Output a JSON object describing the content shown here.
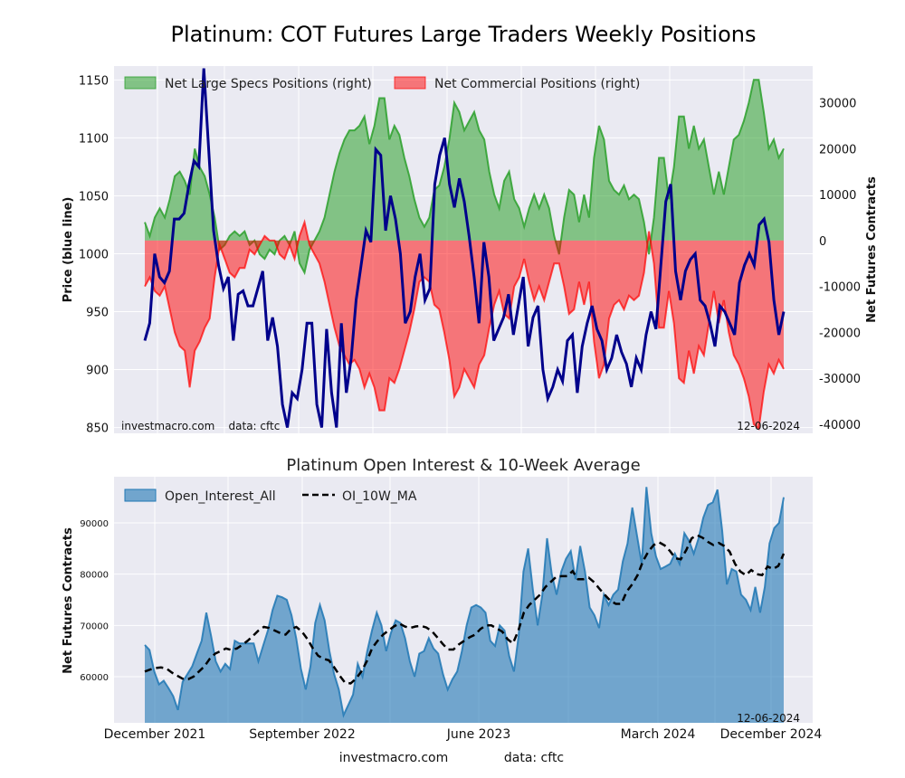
{
  "chart_data": [
    {
      "type": "area",
      "title": "Platinum: COT Futures Large Traders Weekly Positions",
      "ylabel": "Price (blue line)",
      "ylabel_right": "Net Futures Contracts",
      "ylim": [
        845,
        1162
      ],
      "ylim_right": [
        -42000,
        38000
      ],
      "yticks": [
        850,
        900,
        950,
        1000,
        1050,
        1100,
        1150
      ],
      "yticks_right": [
        -40000,
        -30000,
        -20000,
        -10000,
        0,
        10000,
        20000,
        30000
      ],
      "source_note": "investmacro.com    data: cftc",
      "date_note": "12-06-2024",
      "legend_position": "top",
      "grid": true,
      "series": [
        {
          "name": "Net Large Specs Positions (right)",
          "color": "#2ca02c",
          "values": [
            4000,
            1000,
            5000,
            7000,
            5000,
            9000,
            14000,
            15000,
            13000,
            10000,
            20000,
            16000,
            14000,
            10000,
            5000,
            -2000,
            -1000,
            1000,
            2000,
            1000,
            2000,
            -1000,
            0,
            -3000,
            -4000,
            -2000,
            -3000,
            0,
            1000,
            -1000,
            2000,
            -5000,
            -7000,
            -2000,
            0,
            2000,
            5000,
            10000,
            15000,
            19000,
            22000,
            24000,
            24000,
            25000,
            27000,
            21000,
            25000,
            31000,
            31000,
            22000,
            25000,
            23000,
            18000,
            14000,
            9000,
            5000,
            3000,
            5000,
            11000,
            12000,
            16000,
            22000,
            30000,
            28000,
            24000,
            26000,
            28000,
            24000,
            22000,
            15000,
            10000,
            7000,
            13000,
            15000,
            9000,
            7000,
            3000,
            7000,
            10000,
            7000,
            10000,
            7000,
            1000,
            -3000,
            5000,
            11000,
            10000,
            4000,
            10000,
            5000,
            18000,
            25000,
            22000,
            13000,
            11000,
            10000,
            12000,
            9000,
            10000,
            9000,
            4000,
            -3000,
            5000,
            18000,
            18000,
            9000,
            16000,
            27000,
            27000,
            20000,
            25000,
            20000,
            22000,
            16000,
            10000,
            15000,
            10000,
            16000,
            22000,
            23000,
            26000,
            30000,
            35000,
            35000,
            28000,
            20000,
            22000,
            18000,
            20000
          ]
        },
        {
          "name": "Net Commercial Positions (right)",
          "color": "#ff0000",
          "values": [
            -10000,
            -8000,
            -11000,
            -12000,
            -10000,
            -15000,
            -20000,
            -23000,
            -24000,
            -32000,
            -24000,
            -22000,
            -19000,
            -17000,
            -8000,
            -1000,
            -4000,
            -7000,
            -8000,
            -6000,
            -6000,
            -2000,
            -3000,
            -1000,
            1000,
            0,
            0,
            -3000,
            -4000,
            -1000,
            -4000,
            1000,
            4000,
            -1000,
            -3000,
            -5000,
            -9000,
            -14000,
            -19000,
            -23000,
            -25000,
            -27000,
            -26000,
            -28000,
            -32000,
            -29000,
            -32000,
            -37000,
            -37000,
            -30000,
            -31000,
            -28000,
            -24000,
            -20000,
            -15000,
            -9000,
            -8000,
            -9000,
            -14000,
            -15000,
            -20000,
            -26000,
            -34000,
            -32000,
            -28000,
            -30000,
            -32000,
            -27000,
            -25000,
            -19000,
            -14000,
            -11000,
            -16000,
            -17000,
            -10000,
            -8000,
            -4000,
            -9000,
            -13000,
            -10000,
            -13000,
            -9000,
            -5000,
            -5000,
            -10000,
            -16000,
            -15000,
            -9000,
            -14000,
            -9000,
            -22000,
            -30000,
            -27000,
            -17000,
            -14000,
            -13000,
            -15000,
            -12000,
            -13000,
            -12000,
            -7000,
            2000,
            -5000,
            -19000,
            -19000,
            -11000,
            -18000,
            -30000,
            -31000,
            -24000,
            -29000,
            -23000,
            -25000,
            -18000,
            -11000,
            -18000,
            -13000,
            -20000,
            -25000,
            -27000,
            -30000,
            -34000,
            -40000,
            -41000,
            -33000,
            -27000,
            -29000,
            -26000,
            -28000
          ]
        },
        {
          "name": "Price",
          "color": "#00008b",
          "values": [
            925,
            940,
            1000,
            980,
            975,
            985,
            1030,
            1030,
            1035,
            1060,
            1080,
            1075,
            1160,
            1090,
            1020,
            990,
            970,
            980,
            925,
            965,
            968,
            955,
            955,
            970,
            985,
            925,
            945,
            920,
            870,
            850,
            880,
            875,
            900,
            940,
            940,
            870,
            850,
            935,
            880,
            850,
            940,
            880,
            910,
            960,
            990,
            1020,
            1010,
            1090,
            1085,
            1020,
            1050,
            1030,
            1000,
            940,
            950,
            980,
            1000,
            960,
            970,
            1060,
            1085,
            1100,
            1060,
            1040,
            1065,
            1045,
            1015,
            980,
            940,
            1010,
            980,
            925,
            935,
            945,
            965,
            930,
            955,
            980,
            920,
            945,
            955,
            900,
            875,
            885,
            900,
            890,
            925,
            930,
            880,
            920,
            940,
            955,
            935,
            925,
            900,
            910,
            930,
            915,
            905,
            885,
            910,
            900,
            930,
            950,
            935,
            990,
            1045,
            1060,
            985,
            960,
            985,
            995,
            1000,
            960,
            955,
            940,
            920,
            955,
            950,
            940,
            930,
            975,
            990,
            1000,
            990,
            1025,
            1030,
            1010,
            960,
            930,
            950
          ]
        }
      ]
    },
    {
      "type": "area",
      "title": "Platinum Open Interest & 10-Week Average",
      "ylabel": "Net Futures Contracts",
      "ylim": [
        51000,
        99000
      ],
      "yticks": [
        60000,
        70000,
        80000,
        90000
      ],
      "x_labels": [
        "December 2021",
        "September 2022",
        "June 2023",
        "March 2024",
        "December 2024"
      ],
      "date_note": "12-06-2024",
      "legend_position": "top-left",
      "grid": true,
      "series": [
        {
          "name": "Open_Interest_All",
          "color": "#1f77b4",
          "values": [
            66200,
            65200,
            61000,
            58500,
            59200,
            57800,
            56200,
            53500,
            59000,
            60500,
            62000,
            64500,
            67000,
            72500,
            68000,
            63000,
            61000,
            62500,
            61500,
            67000,
            66500,
            66500,
            66500,
            66500,
            63000,
            66000,
            69000,
            73000,
            75800,
            75500,
            75000,
            72000,
            67500,
            61500,
            57500,
            62000,
            70500,
            74000,
            71000,
            65000,
            60500,
            57500,
            52500,
            54500,
            56500,
            62500,
            60000,
            65000,
            69000,
            72500,
            70000,
            65000,
            68500,
            71000,
            70500,
            67500,
            63000,
            60000,
            64500,
            65000,
            67500,
            65500,
            64500,
            60500,
            57500,
            59500,
            61000,
            65000,
            70000,
            73500,
            74000,
            73500,
            72500,
            67000,
            66000,
            70000,
            69000,
            64000,
            61000,
            68000,
            80500,
            85000,
            77000,
            70000,
            76000,
            87000,
            80000,
            76000,
            80500,
            83000,
            84500,
            79000,
            85500,
            80500,
            73500,
            72000,
            69500,
            76000,
            74000,
            76000,
            77000,
            82500,
            86000,
            93000,
            87500,
            82000,
            97000,
            88000,
            83500,
            81000,
            81500,
            82000,
            84000,
            82000,
            88000,
            86500,
            84000,
            87000,
            91000,
            93500,
            94000,
            96500,
            88500,
            78000,
            81000,
            80500,
            76000,
            75000,
            73000,
            77500,
            72500,
            77500,
            86000,
            89000,
            90000,
            95000
          ]
        },
        {
          "name": "OI_10W_MA",
          "color": "#000000",
          "values": [
            61000,
            61400,
            61700,
            61800,
            61600,
            60800,
            60200,
            59600,
            59500,
            60000,
            61000,
            62000,
            63500,
            64500,
            65000,
            65500,
            65200,
            65500,
            66200,
            67000,
            68000,
            69000,
            69700,
            69500,
            69000,
            68500,
            68200,
            69300,
            69700,
            68800,
            67400,
            65600,
            64100,
            63500,
            63200,
            61800,
            60200,
            58800,
            58700,
            59600,
            61000,
            63000,
            65600,
            67000,
            68200,
            69000,
            69800,
            70400,
            69800,
            69500,
            69800,
            69900,
            69600,
            68900,
            67700,
            66400,
            65300,
            65300,
            66300,
            67000,
            67700,
            68200,
            69300,
            70000,
            70000,
            69400,
            68800,
            67300,
            66500,
            69000,
            72500,
            74000,
            75000,
            76000,
            77500,
            78500,
            79500,
            79600,
            79600,
            80600,
            79000,
            79000,
            79300,
            78400,
            77100,
            75900,
            74800,
            74200,
            74200,
            76600,
            78000,
            79800,
            82500,
            84400,
            85700,
            86200,
            85600,
            84500,
            83100,
            82900,
            84700,
            87000,
            87600,
            87100,
            86300,
            85700,
            86100,
            85500,
            84400,
            82000,
            80500,
            79800,
            80800,
            80000,
            79800,
            81500,
            81000,
            81600,
            84000
          ]
        }
      ]
    }
  ],
  "footer": {
    "site": "investmacro.com",
    "source": "data: cftc"
  }
}
